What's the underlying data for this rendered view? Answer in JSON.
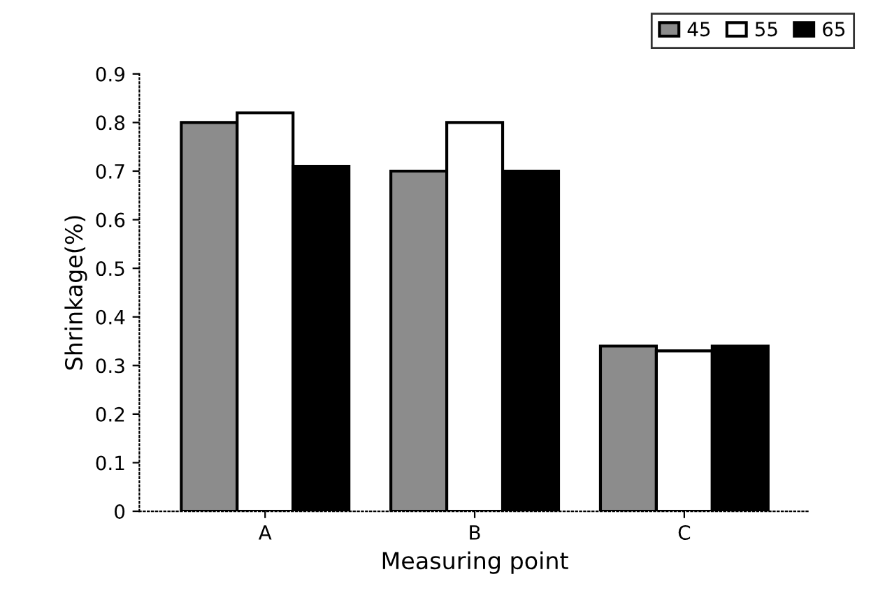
{
  "chart_data": {
    "type": "bar",
    "xlabel": "Measuring point",
    "ylabel": "Shrinkage(%)",
    "categories": [
      "A",
      "B",
      "C"
    ],
    "series": [
      {
        "name": "45",
        "color": "#8c8c8c",
        "values": [
          0.8,
          0.7,
          0.34
        ]
      },
      {
        "name": "55",
        "color": "#ffffff",
        "values": [
          0.82,
          0.8,
          0.33
        ]
      },
      {
        "name": "65",
        "color": "#000000",
        "values": [
          0.71,
          0.7,
          0.34
        ]
      }
    ],
    "ylim": [
      0,
      0.9
    ],
    "yticks": [
      0,
      0.1,
      0.2,
      0.3,
      0.4,
      0.5,
      0.6,
      0.7,
      0.8,
      0.9
    ],
    "grid": false,
    "legend": "top right"
  }
}
